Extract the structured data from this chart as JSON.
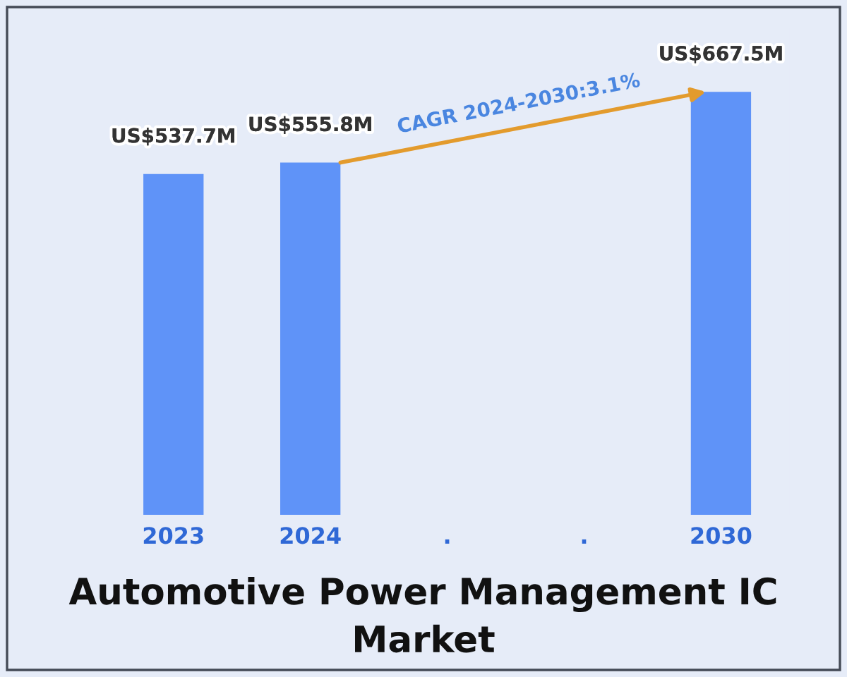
{
  "chart_data": {
    "type": "bar",
    "title": "Automotive Power Management IC Market",
    "categories": [
      "2023",
      "2024",
      ".",
      ".",
      "2030"
    ],
    "values": [
      537700000,
      555800000,
      null,
      null,
      667500000
    ],
    "value_labels": [
      "US$537.7M",
      "US$555.8M",
      null,
      null,
      "US$667.5M"
    ],
    "color": "#5f93f8",
    "tick_labels": "x",
    "annotations": [
      "CAGR 2024-2030:3.1%"
    ]
  }
}
